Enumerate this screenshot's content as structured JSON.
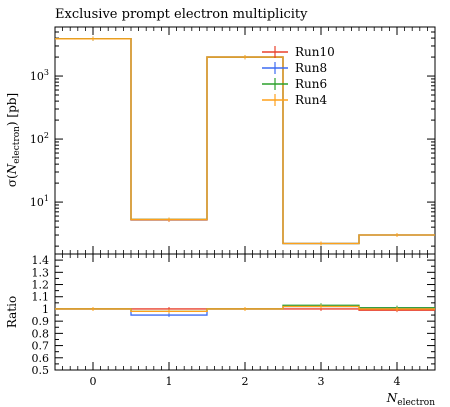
{
  "chart_data": [
    {
      "type": "line",
      "step": true,
      "title": "Exclusive prompt electron multiplicity",
      "ylabel": "σ(N_electron) [pb]",
      "ylabel_main": "σ(",
      "ylabel_sym": "N",
      "ylabel_sub": "electron",
      "ylabel_tail": ") [pb]",
      "yscale": "log",
      "ylim": [
        1.5,
        6000
      ],
      "y_ticks": [
        {
          "value": 10,
          "base": "10",
          "exp": "1"
        },
        {
          "value": 100,
          "base": "10",
          "exp": "2"
        },
        {
          "value": 1000,
          "base": "10",
          "exp": "3"
        }
      ],
      "bin_edges": [
        -0.5,
        0.5,
        1.5,
        2.5,
        3.5,
        4.5
      ],
      "legend_position": "top-right",
      "series": [
        {
          "name": "Run10",
          "color": "#e8412c",
          "values": [
            3900,
            5.2,
            2000,
            2.2,
            3.0
          ]
        },
        {
          "name": "Run8",
          "color": "#3d6cf2",
          "values": [
            3900,
            5.3,
            2000,
            2.2,
            3.0
          ]
        },
        {
          "name": "Run6",
          "color": "#2ca02c",
          "values": [
            3900,
            5.3,
            2000,
            2.2,
            3.0
          ]
        },
        {
          "name": "Run4",
          "color": "#ffa11a",
          "values": [
            3900,
            5.3,
            2000,
            2.2,
            3.0
          ]
        }
      ]
    },
    {
      "type": "line",
      "step": true,
      "ylabel": "Ratio",
      "xlabel": "N_electron",
      "xlabel_sym": "N",
      "xlabel_sub": "electron",
      "ylim": [
        0.5,
        1.45
      ],
      "y_tick_labels": [
        "0.5",
        "0.6",
        "0.7",
        "0.8",
        "0.9",
        "1",
        "1.1",
        "1.2",
        "1.3",
        "1.4"
      ],
      "x_ticks": [
        "0",
        "1",
        "2",
        "3",
        "4"
      ],
      "bin_edges": [
        -0.5,
        0.5,
        1.5,
        2.5,
        3.5,
        4.5
      ],
      "series": [
        {
          "name": "Run10",
          "color": "#e8412c",
          "values": [
            1.0,
            1.0,
            1.0,
            1.0,
            0.99
          ]
        },
        {
          "name": "Run8",
          "color": "#3d6cf2",
          "values": [
            1.0,
            0.95,
            1.0,
            1.02,
            1.01
          ]
        },
        {
          "name": "Run6",
          "color": "#2ca02c",
          "values": [
            1.0,
            0.98,
            1.0,
            1.03,
            1.01
          ]
        },
        {
          "name": "Run4",
          "color": "#ffa11a",
          "values": [
            1.0,
            0.98,
            1.0,
            1.02,
            1.0
          ]
        }
      ]
    }
  ]
}
